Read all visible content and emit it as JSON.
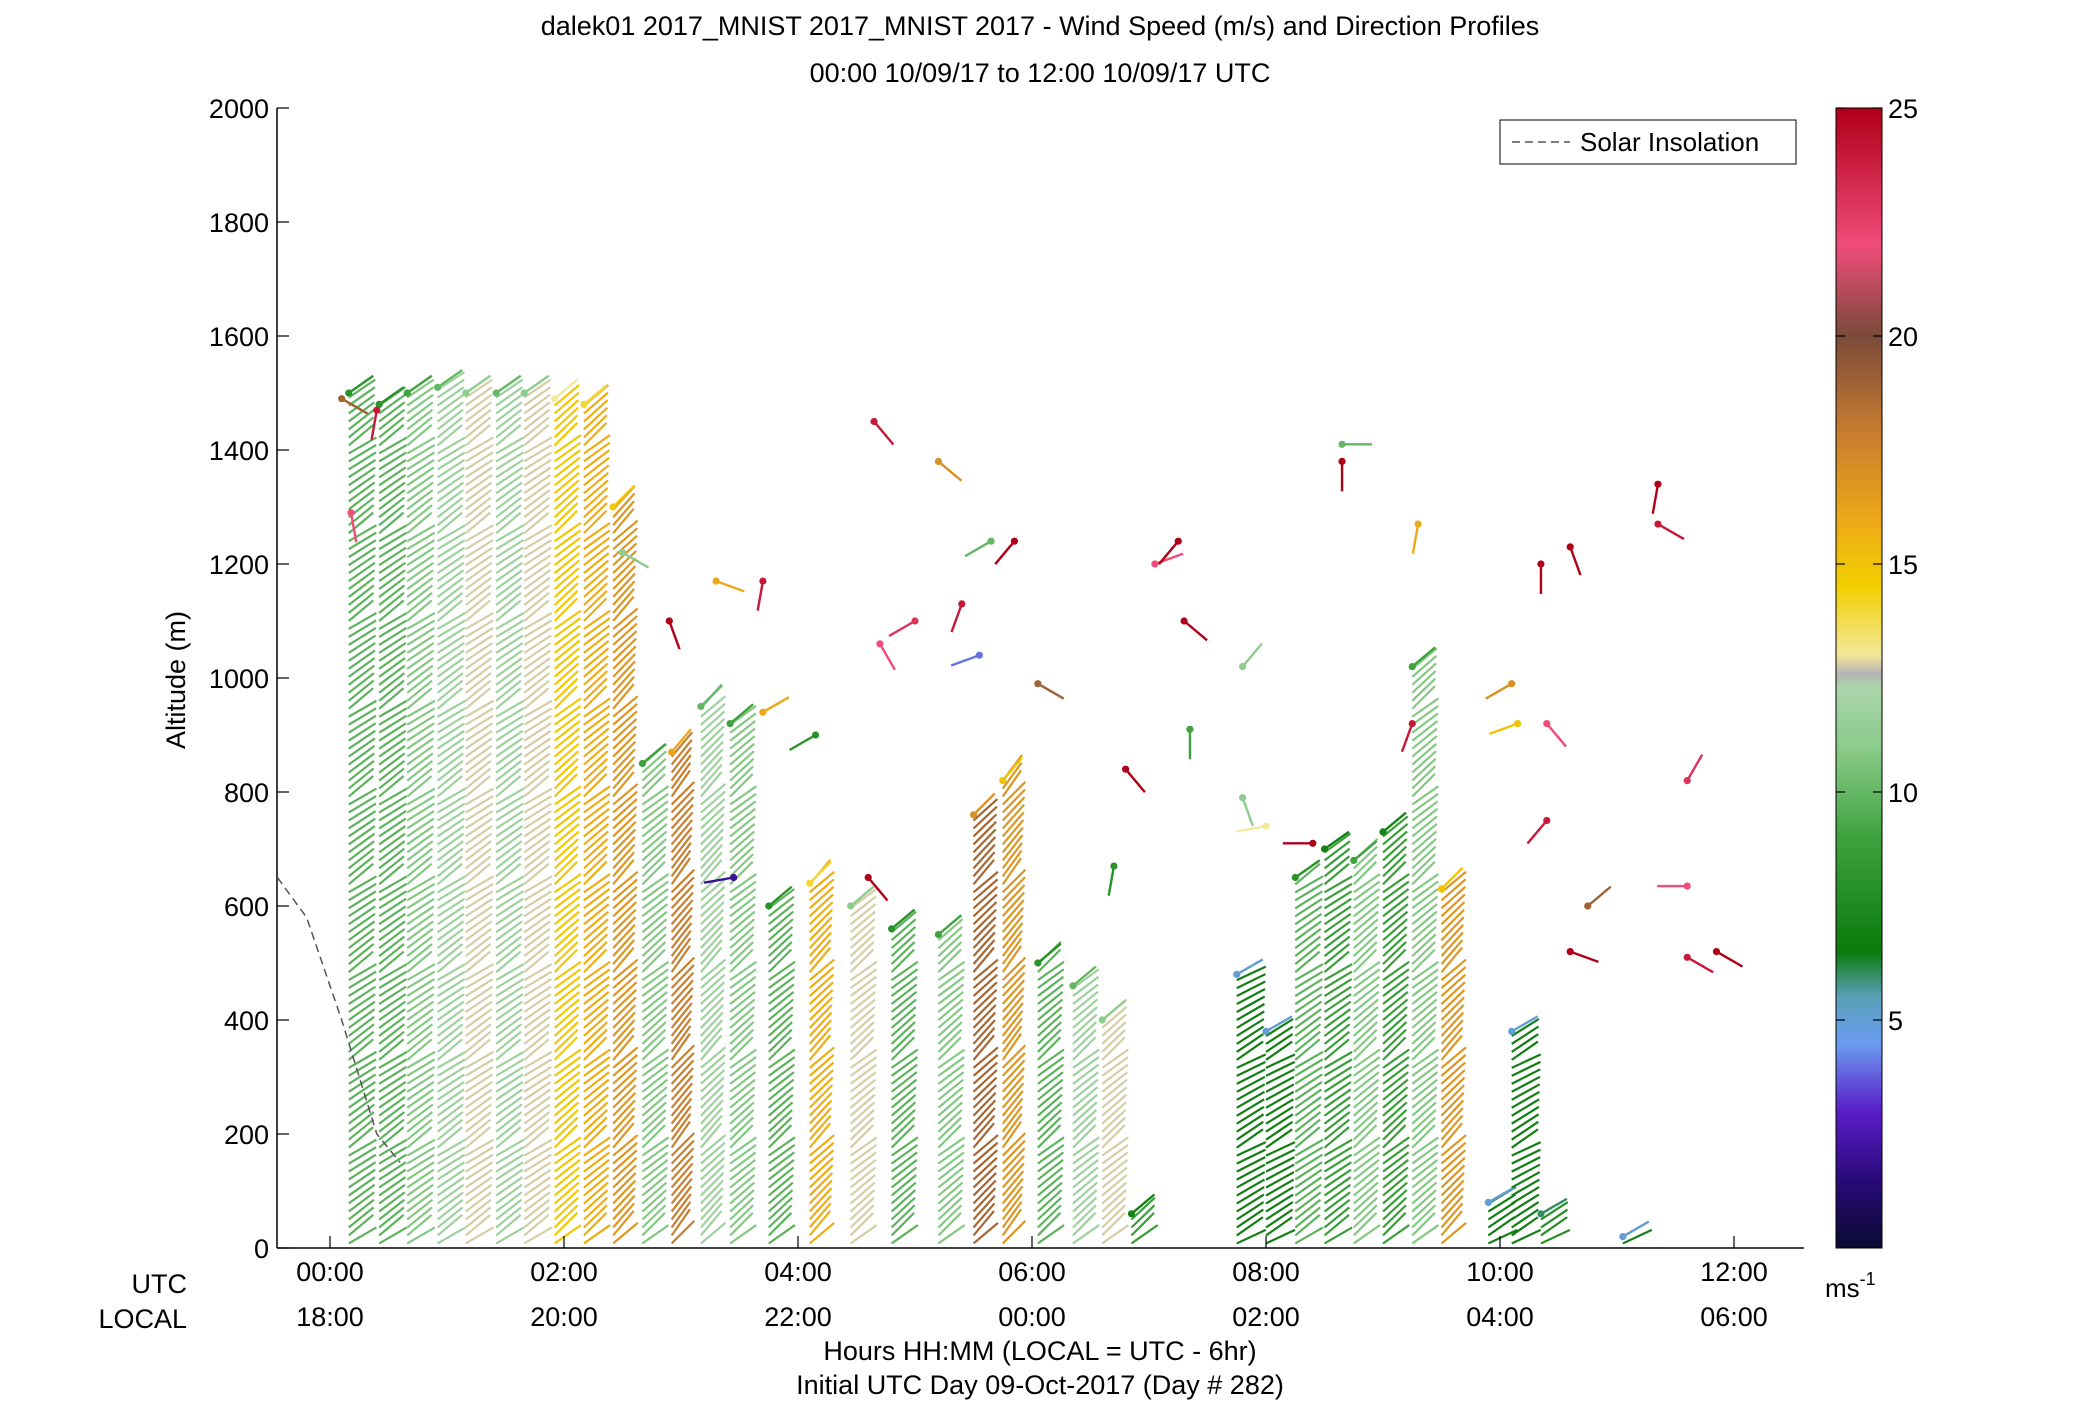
{
  "chart_data": {
    "type": "wind-barb-profile",
    "title_line1": "dalek01 2017_MNIST 2017_MNIST 2017 - Wind Speed (m/s) and Direction Profiles",
    "title_line2": "00:00 10/09/17 to 12:00 10/09/17  UTC",
    "ylabel": "Altitude (m)",
    "xlabel_line1": "Hours HH:MM  (LOCAL = UTC - 6hr)",
    "xlabel_line2": "Initial UTC Day 09-Oct-2017 (Day # 282)",
    "xrow_labels": {
      "utc": "UTC",
      "local": "LOCAL"
    },
    "xlim_hours": [
      -0.45,
      12.5
    ],
    "ylim": [
      0,
      2000
    ],
    "yticks": [
      0,
      200,
      400,
      600,
      800,
      1000,
      1200,
      1400,
      1600,
      1800,
      2000
    ],
    "xticks_hours": [
      0,
      2,
      4,
      6,
      8,
      10,
      12
    ],
    "xticks_utc": [
      "00:00",
      "02:00",
      "04:00",
      "06:00",
      "08:00",
      "10:00",
      "12:00"
    ],
    "xticks_local": [
      "18:00",
      "20:00",
      "22:00",
      "00:00",
      "02:00",
      "04:00",
      "06:00"
    ],
    "legend": {
      "label": "Solar Insolation",
      "position": "top-right"
    },
    "solar_insolation": [
      [
        -0.45,
        650
      ],
      [
        -0.2,
        580
      ],
      [
        0.1,
        400
      ],
      [
        0.4,
        200
      ],
      [
        0.6,
        150
      ]
    ],
    "colorbar": {
      "label": "ms",
      "label_sup": "-1",
      "ticks": [
        5,
        10,
        15,
        20,
        25
      ],
      "range": [
        0,
        25
      ],
      "stops": [
        {
          "v": 0,
          "c": "#0a0a30"
        },
        {
          "v": 1.5,
          "c": "#2a0a7a"
        },
        {
          "v": 3,
          "c": "#5a1ec8"
        },
        {
          "v": 4.5,
          "c": "#6a9cf0"
        },
        {
          "v": 5.5,
          "c": "#5aa0b8"
        },
        {
          "v": 6.5,
          "c": "#0c7a0c"
        },
        {
          "v": 9,
          "c": "#3ea23e"
        },
        {
          "v": 11,
          "c": "#8ccc8c"
        },
        {
          "v": 12.3,
          "c": "#aad4aa"
        },
        {
          "v": 12.6,
          "c": "#b4b4b4"
        },
        {
          "v": 13,
          "c": "#f4e89a"
        },
        {
          "v": 14.5,
          "c": "#f2d000"
        },
        {
          "v": 16,
          "c": "#eca818"
        },
        {
          "v": 18,
          "c": "#c47a30"
        },
        {
          "v": 20,
          "c": "#7a4a3a"
        },
        {
          "v": 22,
          "c": "#f04c7a"
        },
        {
          "v": 25,
          "c": "#b00018"
        }
      ]
    },
    "dense_profiles": [
      {
        "hour": 0.16,
        "top": 1500,
        "bottom": 0,
        "speed": 8,
        "dir": 235
      },
      {
        "hour": 0.42,
        "top": 1480,
        "bottom": 0,
        "speed": 8,
        "dir": 235
      },
      {
        "hour": 0.66,
        "top": 1500,
        "bottom": 0,
        "speed": 9,
        "dir": 235
      },
      {
        "hour": 0.92,
        "top": 1510,
        "bottom": 0,
        "speed": 10,
        "dir": 235
      },
      {
        "hour": 1.16,
        "top": 1500,
        "bottom": 0,
        "speed": 11,
        "dir": 235
      },
      {
        "hour": 1.42,
        "top": 1500,
        "bottom": 0,
        "speed": 10,
        "dir": 235
      },
      {
        "hour": 1.66,
        "top": 1500,
        "bottom": 0,
        "speed": 11,
        "dir": 235
      },
      {
        "hour": 1.92,
        "top": 1490,
        "bottom": 0,
        "speed": 13,
        "dir": 230
      },
      {
        "hour": 2.17,
        "top": 1480,
        "bottom": 0,
        "speed": 14,
        "dir": 230
      },
      {
        "hour": 2.42,
        "top": 1300,
        "bottom": 0,
        "speed": 15,
        "dir": 225
      },
      {
        "hour": 2.67,
        "top": 850,
        "bottom": 0,
        "speed": 9,
        "dir": 230
      },
      {
        "hour": 2.92,
        "top": 870,
        "bottom": 0,
        "speed": 16,
        "dir": 220
      },
      {
        "hour": 3.17,
        "top": 950,
        "bottom": 0,
        "speed": 10,
        "dir": 225
      },
      {
        "hour": 3.42,
        "top": 920,
        "bottom": 0,
        "speed": 9,
        "dir": 230
      },
      {
        "hour": 3.75,
        "top": 600,
        "bottom": 0,
        "speed": 8,
        "dir": 230
      },
      {
        "hour": 4.1,
        "top": 640,
        "bottom": 0,
        "speed": 14,
        "dir": 225
      },
      {
        "hour": 4.45,
        "top": 600,
        "bottom": 0,
        "speed": 11,
        "dir": 230
      },
      {
        "hour": 4.8,
        "top": 560,
        "bottom": 0,
        "speed": 8,
        "dir": 230
      },
      {
        "hour": 5.2,
        "top": 550,
        "bottom": 0,
        "speed": 9,
        "dir": 230
      },
      {
        "hour": 5.5,
        "top": 760,
        "bottom": 0,
        "speed": 17,
        "dir": 225
      },
      {
        "hour": 5.75,
        "top": 820,
        "bottom": 0,
        "speed": 15,
        "dir": 220
      },
      {
        "hour": 6.05,
        "top": 500,
        "bottom": 0,
        "speed": 8,
        "dir": 230
      },
      {
        "hour": 6.35,
        "top": 460,
        "bottom": 0,
        "speed": 10,
        "dir": 230
      },
      {
        "hour": 6.6,
        "top": 400,
        "bottom": 0,
        "speed": 11,
        "dir": 230
      },
      {
        "hour": 6.85,
        "top": 60,
        "bottom": 0,
        "speed": 7,
        "dir": 230
      },
      {
        "hour": 7.75,
        "top": 480,
        "bottom": 0,
        "speed": 5,
        "dir": 240
      },
      {
        "hour": 8.0,
        "top": 380,
        "bottom": 0,
        "speed": 5,
        "dir": 240
      },
      {
        "hour": 8.25,
        "top": 650,
        "bottom": 0,
        "speed": 8,
        "dir": 235
      },
      {
        "hour": 8.5,
        "top": 700,
        "bottom": 0,
        "speed": 7,
        "dir": 235
      },
      {
        "hour": 8.75,
        "top": 680,
        "bottom": 0,
        "speed": 9,
        "dir": 230
      },
      {
        "hour": 9.0,
        "top": 730,
        "bottom": 0,
        "speed": 7,
        "dir": 230
      },
      {
        "hour": 9.25,
        "top": 1020,
        "bottom": 0,
        "speed": 9,
        "dir": 230
      },
      {
        "hour": 9.5,
        "top": 630,
        "bottom": 0,
        "speed": 15,
        "dir": 225
      },
      {
        "hour": 9.9,
        "top": 80,
        "bottom": 0,
        "speed": 5,
        "dir": 240
      },
      {
        "hour": 10.1,
        "top": 380,
        "bottom": 0,
        "speed": 5,
        "dir": 240
      },
      {
        "hour": 10.35,
        "top": 60,
        "bottom": 0,
        "speed": 6,
        "dir": 240
      },
      {
        "hour": 11.05,
        "top": 20,
        "bottom": 0,
        "speed": 5,
        "dir": 240
      }
    ],
    "sparse_barbs": [
      {
        "hour": 0.1,
        "alt": 1490,
        "speed": 19,
        "dir": 300
      },
      {
        "hour": 0.4,
        "alt": 1470,
        "speed": 24,
        "dir": 10
      },
      {
        "hour": 0.18,
        "alt": 1290,
        "speed": 22,
        "dir": 350
      },
      {
        "hour": 4.65,
        "alt": 1450,
        "speed": 24,
        "dir": 320
      },
      {
        "hour": 5.2,
        "alt": 1380,
        "speed": 17,
        "dir": 310
      },
      {
        "hour": 5.65,
        "alt": 1240,
        "speed": 10,
        "dir": 60
      },
      {
        "hour": 5.85,
        "alt": 1240,
        "speed": 25,
        "dir": 40
      },
      {
        "hour": 7.05,
        "alt": 1200,
        "speed": 22,
        "dir": 250
      },
      {
        "hour": 7.25,
        "alt": 1240,
        "speed": 25,
        "dir": 40
      },
      {
        "hour": 2.5,
        "alt": 1220,
        "speed": 11,
        "dir": 300
      },
      {
        "hour": 3.3,
        "alt": 1170,
        "speed": 16,
        "dir": 290
      },
      {
        "hour": 3.7,
        "alt": 1170,
        "speed": 24,
        "dir": 10
      },
      {
        "hour": 2.9,
        "alt": 1100,
        "speed": 25,
        "dir": 340
      },
      {
        "hour": 4.7,
        "alt": 1060,
        "speed": 22,
        "dir": 330
      },
      {
        "hour": 5.0,
        "alt": 1100,
        "speed": 23,
        "dir": 60
      },
      {
        "hour": 5.4,
        "alt": 1130,
        "speed": 24,
        "dir": 20
      },
      {
        "hour": 7.3,
        "alt": 1100,
        "speed": 25,
        "dir": 310
      },
      {
        "hour": 5.55,
        "alt": 1040,
        "speed": 4,
        "dir": 70
      },
      {
        "hour": 6.05,
        "alt": 990,
        "speed": 19,
        "dir": 300
      },
      {
        "hour": 7.8,
        "alt": 1020,
        "speed": 11,
        "dir": 220
      },
      {
        "hour": 8.65,
        "alt": 1410,
        "speed": 10,
        "dir": 270
      },
      {
        "hour": 8.65,
        "alt": 1380,
        "speed": 25,
        "dir": 0
      },
      {
        "hour": 9.3,
        "alt": 1270,
        "speed": 16,
        "dir": 10
      },
      {
        "hour": 10.35,
        "alt": 1200,
        "speed": 25,
        "dir": 0
      },
      {
        "hour": 10.6,
        "alt": 1230,
        "speed": 25,
        "dir": 340
      },
      {
        "hour": 11.35,
        "alt": 1340,
        "speed": 25,
        "dir": 10
      },
      {
        "hour": 11.35,
        "alt": 1270,
        "speed": 24,
        "dir": 300
      },
      {
        "hour": 10.1,
        "alt": 990,
        "speed": 17,
        "dir": 60
      },
      {
        "hour": 10.15,
        "alt": 920,
        "speed": 15,
        "dir": 70
      },
      {
        "hour": 10.4,
        "alt": 920,
        "speed": 22,
        "dir": 320
      },
      {
        "hour": 9.25,
        "alt": 920,
        "speed": 24,
        "dir": 20
      },
      {
        "hour": 3.7,
        "alt": 940,
        "speed": 16,
        "dir": 240
      },
      {
        "hour": 4.15,
        "alt": 900,
        "speed": 8,
        "dir": 60
      },
      {
        "hour": 7.35,
        "alt": 910,
        "speed": 9,
        "dir": 0
      },
      {
        "hour": 6.8,
        "alt": 840,
        "speed": 25,
        "dir": 320
      },
      {
        "hour": 7.8,
        "alt": 790,
        "speed": 11,
        "dir": 340
      },
      {
        "hour": 8.0,
        "alt": 740,
        "speed": 13,
        "dir": 80
      },
      {
        "hour": 10.4,
        "alt": 750,
        "speed": 24,
        "dir": 40
      },
      {
        "hour": 11.6,
        "alt": 820,
        "speed": 23,
        "dir": 210
      },
      {
        "hour": 11.6,
        "alt": 635,
        "speed": 22,
        "dir": 90
      },
      {
        "hour": 10.75,
        "alt": 600,
        "speed": 19,
        "dir": 230
      },
      {
        "hour": 10.6,
        "alt": 520,
        "speed": 25,
        "dir": 290
      },
      {
        "hour": 11.6,
        "alt": 510,
        "speed": 24,
        "dir": 300
      },
      {
        "hour": 11.85,
        "alt": 520,
        "speed": 25,
        "dir": 300
      },
      {
        "hour": 8.4,
        "alt": 710,
        "speed": 25,
        "dir": 90
      },
      {
        "hour": 6.7,
        "alt": 670,
        "speed": 8,
        "dir": 10
      },
      {
        "hour": 4.6,
        "alt": 650,
        "speed": 25,
        "dir": 320
      },
      {
        "hour": 3.45,
        "alt": 650,
        "speed": 2,
        "dir": 80
      }
    ]
  }
}
